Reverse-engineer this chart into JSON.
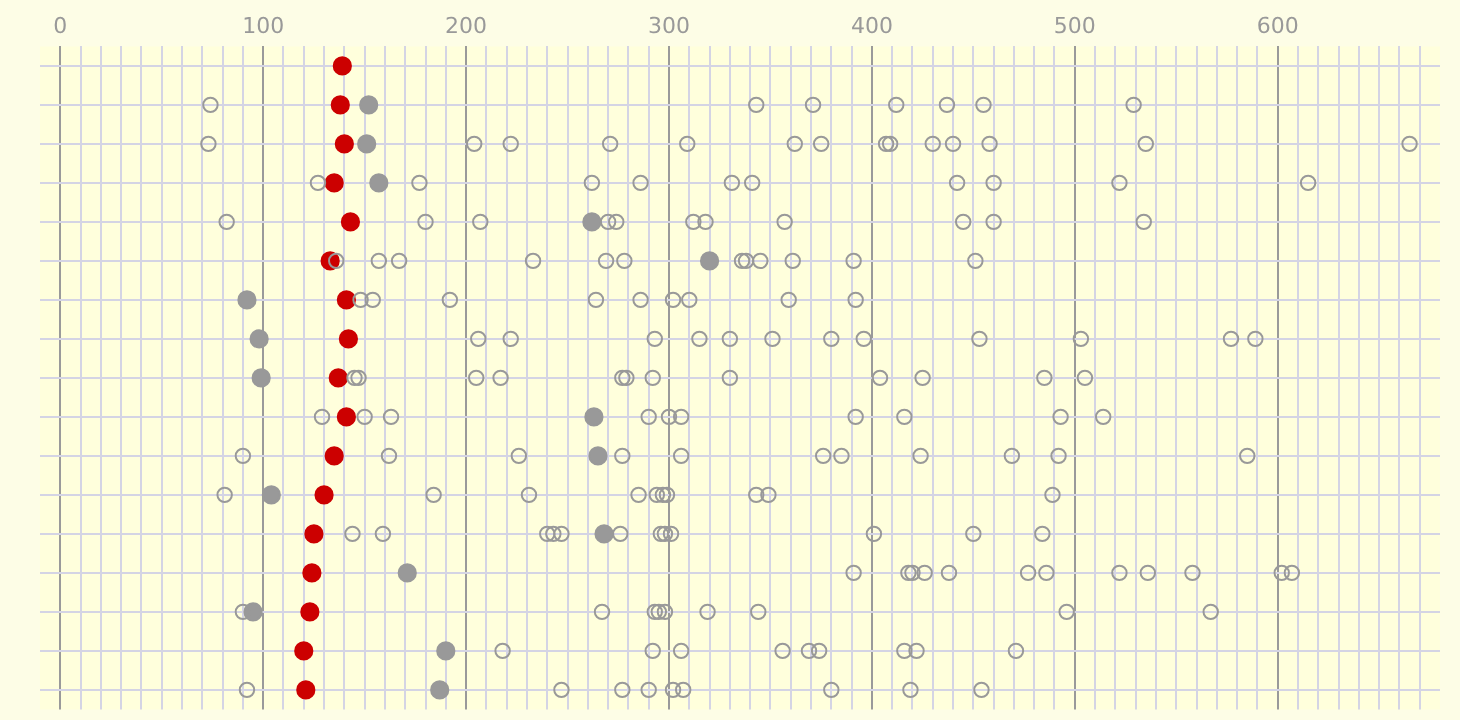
{
  "chart_data": {
    "type": "scatter",
    "orientation": "horizontal",
    "marker": "circle",
    "grid": true,
    "legend": false,
    "tick_labels": "x",
    "xlim": [
      -10,
      680
    ],
    "categories": [
      null,
      null,
      null,
      null,
      null,
      null,
      null,
      null,
      null,
      null,
      null,
      null,
      null,
      null,
      null,
      null,
      null
    ],
    "xticks": [
      0,
      {
        "value": 10,
        "label": null
      },
      {
        "value": 20,
        "label": null
      },
      {
        "value": 30,
        "label": null
      },
      {
        "value": 40,
        "label": null
      },
      {
        "value": 50,
        "label": null
      },
      {
        "value": 60,
        "label": null
      },
      {
        "value": 70,
        "label": null
      },
      {
        "value": 80,
        "label": null
      },
      {
        "value": 90,
        "label": null
      },
      100,
      {
        "value": 110,
        "label": null
      },
      {
        "value": 120,
        "label": null
      },
      {
        "value": 130,
        "label": null
      },
      {
        "value": 140,
        "label": null
      },
      {
        "value": 150,
        "label": null
      },
      {
        "value": 160,
        "label": null
      },
      {
        "value": 170,
        "label": null
      },
      {
        "value": 180,
        "label": null
      },
      {
        "value": 190,
        "label": null
      },
      200,
      {
        "value": 210,
        "label": null
      },
      {
        "value": 220,
        "label": null
      },
      {
        "value": 230,
        "label": null
      },
      {
        "value": 240,
        "label": null
      },
      {
        "value": 250,
        "label": null
      },
      {
        "value": 260,
        "label": null
      },
      {
        "value": 270,
        "label": null
      },
      {
        "value": 280,
        "label": null
      },
      {
        "value": 290,
        "label": null
      },
      300,
      {
        "value": 310,
        "label": null
      },
      {
        "value": 320,
        "label": null
      },
      {
        "value": 330,
        "label": null
      },
      {
        "value": 340,
        "label": null
      },
      {
        "value": 350,
        "label": null
      },
      {
        "value": 360,
        "label": null
      },
      {
        "value": 370,
        "label": null
      },
      {
        "value": 380,
        "label": null
      },
      {
        "value": 390,
        "label": null
      },
      400,
      {
        "value": 410,
        "label": null
      },
      {
        "value": 420,
        "label": null
      },
      {
        "value": 430,
        "label": null
      },
      {
        "value": 440,
        "label": null
      },
      {
        "value": 450,
        "label": null
      },
      {
        "value": 460,
        "label": null
      },
      {
        "value": 470,
        "label": null
      },
      {
        "value": 480,
        "label": null
      },
      {
        "value": 490,
        "label": null
      },
      500,
      {
        "value": 510,
        "label": null
      },
      {
        "value": 520,
        "label": null
      },
      {
        "value": 530,
        "label": null
      },
      {
        "value": 540,
        "label": null
      },
      {
        "value": 550,
        "label": null
      },
      {
        "value": 560,
        "label": null
      },
      {
        "value": 570,
        "label": null
      },
      {
        "value": 580,
        "label": null
      },
      {
        "value": 590,
        "label": null
      },
      600,
      {
        "value": 610,
        "label": null
      },
      {
        "value": 620,
        "label": null
      },
      {
        "value": 630,
        "label": null
      },
      {
        "value": 640,
        "label": null
      },
      {
        "value": 650,
        "label": null
      },
      {
        "value": 660,
        "label": null
      },
      {
        "value": 670,
        "label": null
      }
    ],
    "series": [
      {
        "color": "#999999",
        "marker": "circle-open",
        "values": [
          null,
          74,
          73,
          127,
          82,
          136,
          148,
          206,
          145,
          129,
          90,
          81,
          144,
          391,
          90,
          218,
          92
        ]
      },
      {
        "color": "#999999",
        "marker": "circle-open",
        "values": [
          null,
          343,
          204,
          177,
          180,
          157,
          154,
          222,
          147,
          150,
          162,
          184,
          159,
          418,
          267,
          292,
          247
        ]
      },
      {
        "color": "#999999",
        "marker": "circle-open",
        "values": [
          null,
          371,
          222,
          262,
          207,
          167,
          192,
          293,
          205,
          163,
          226,
          231,
          240,
          420,
          293,
          306,
          277
        ]
      },
      {
        "color": "#999999",
        "marker": "circle-open",
        "values": [
          null,
          412,
          271,
          286,
          270,
          233,
          264,
          315,
          217,
          290,
          277,
          285,
          243,
          426,
          295,
          356,
          290
        ]
      },
      {
        "color": "#999999",
        "marker": "circle-open",
        "values": [
          null,
          437,
          309,
          331,
          274,
          269,
          286,
          330,
          277,
          300,
          306,
          294,
          247,
          438,
          298,
          369,
          302
        ]
      },
      {
        "color": "#999999",
        "marker": "circle-open",
        "values": [
          null,
          455,
          362,
          341,
          312,
          278,
          302,
          351,
          279,
          306,
          376,
          297,
          276,
          477,
          319,
          374,
          307
        ]
      },
      {
        "color": "#999999",
        "marker": "circle-open",
        "values": [
          null,
          529,
          375,
          442,
          318,
          336,
          310,
          380,
          292,
          392,
          385,
          299,
          296,
          486,
          344,
          416,
          380
        ]
      },
      {
        "color": "#999999",
        "marker": "circle-open",
        "values": [
          null,
          null,
          407,
          460,
          357,
          338,
          359,
          396,
          330,
          416,
          424,
          343,
          298,
          522,
          496,
          422,
          419
        ]
      },
      {
        "color": "#999999",
        "marker": "circle-open",
        "values": [
          null,
          null,
          409,
          522,
          445,
          345,
          392,
          453,
          404,
          493,
          469,
          349,
          301,
          536,
          567,
          471,
          454
        ]
      },
      {
        "color": "#999999",
        "marker": "circle-open",
        "values": [
          null,
          null,
          430,
          615,
          460,
          361,
          null,
          503,
          425,
          514,
          492,
          489,
          401,
          558,
          null,
          null,
          null
        ]
      },
      {
        "color": "#999999",
        "marker": "circle-open",
        "values": [
          null,
          null,
          440,
          null,
          534,
          391,
          null,
          577,
          485,
          null,
          585,
          null,
          450,
          602,
          null,
          null,
          null
        ]
      },
      {
        "color": "#999999",
        "marker": "circle-open",
        "values": [
          null,
          null,
          458,
          null,
          null,
          451,
          null,
          589,
          505,
          null,
          null,
          null,
          484,
          607,
          null,
          null,
          null
        ]
      },
      {
        "color": "#999999",
        "marker": "circle-open",
        "values": [
          null,
          null,
          535,
          null,
          null,
          null,
          null,
          null,
          null,
          null,
          null,
          null,
          null,
          null,
          null,
          null,
          null
        ]
      },
      {
        "color": "#999999",
        "marker": "circle-open",
        "values": [
          null,
          null,
          665,
          null,
          null,
          null,
          null,
          null,
          null,
          null,
          null,
          null,
          null,
          null,
          null,
          null,
          null
        ]
      },
      {
        "color": "#999999",
        "values": [
          null,
          152,
          151,
          157,
          262,
          320,
          92,
          98,
          99,
          263,
          265,
          104,
          268,
          171,
          95,
          190,
          187
        ]
      },
      {
        "color": "#cc0000",
        "values": [
          139,
          138,
          140,
          135,
          143,
          133,
          141,
          142,
          137,
          141,
          135,
          130,
          125,
          124,
          123,
          120,
          121
        ]
      }
    ]
  }
}
